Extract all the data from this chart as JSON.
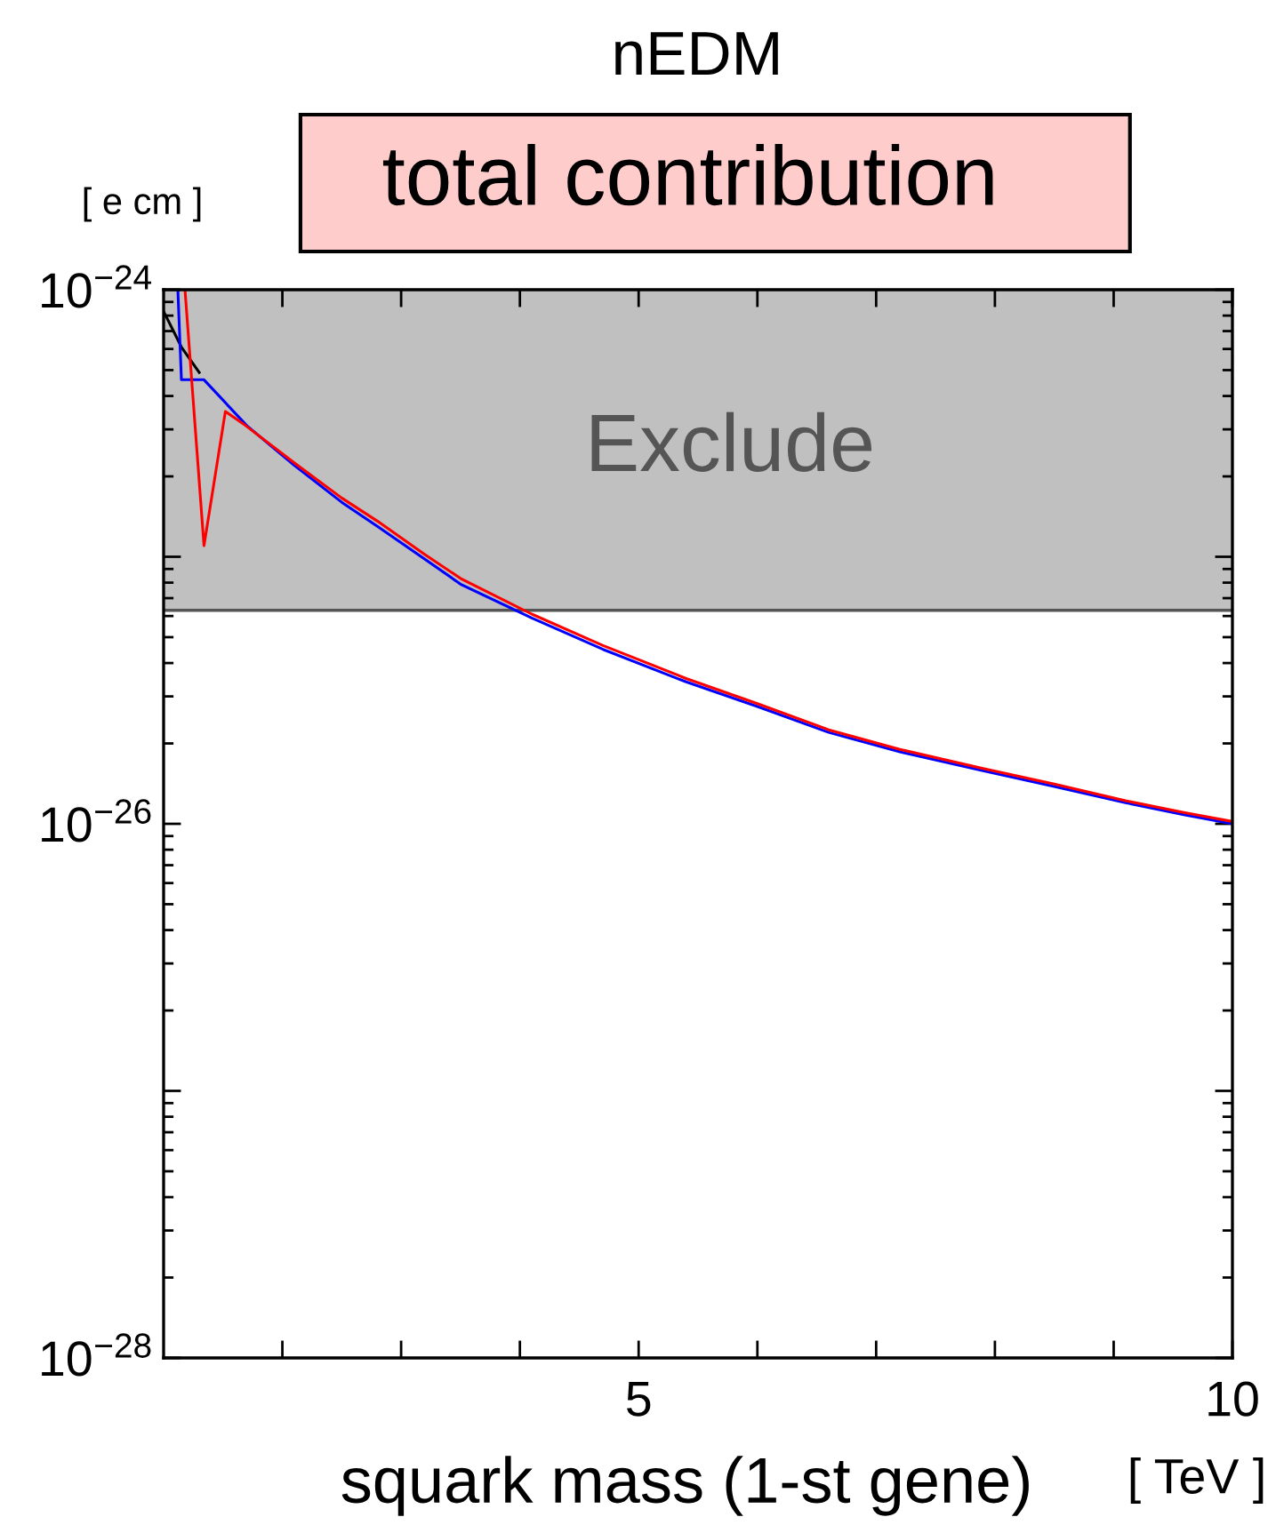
{
  "chart_data": {
    "type": "line",
    "title": "nEDM",
    "subtitle": "total contribution",
    "xlabel": "squark mass (1-st gene)",
    "ylabel": "[ e cm ]",
    "annotations": [
      "[ TeV ]"
    ],
    "log": "y",
    "xlim": [
      1,
      10
    ],
    "xticks": [
      {
        "value": 2,
        "label": null
      },
      {
        "value": 3,
        "label": null
      },
      {
        "value": 4,
        "label": null
      },
      5,
      {
        "value": 6,
        "label": null
      },
      {
        "value": 7,
        "label": null
      },
      {
        "value": 8,
        "label": null
      },
      {
        "value": 9,
        "label": null
      },
      10
    ],
    "ylim": [
      1e-28,
      1e-24
    ],
    "yticks": [
      {
        "value": 1e-28,
        "label": "10$^{−28}$"
      },
      {
        "value": 1e-27,
        "label": null
      },
      {
        "value": 1e-26,
        "label": "10$^{−26}$"
      },
      {
        "value": 1e-25,
        "label": null
      },
      {
        "value": 1e-24,
        "label": "10$^{−24}$"
      }
    ],
    "bands": [
      {
        "axis": "y",
        "from": 6.3e-26,
        "to": 1e-24,
        "label": "Exclude",
        "color": "#c0c0c0"
      }
    ],
    "ref_lines": [
      {
        "axis": "y",
        "value": 6.3e-26,
        "color": "#555555"
      }
    ],
    "series": [
      {
        "color": "#000000",
        "x": [
          1,
          1.15,
          1.3
        ],
        "values": [
          8.3e-25,
          6.1e-25,
          4.9e-25
        ]
      },
      {
        "color": "#0000ff",
        "x": [
          1.12,
          1.15,
          1.34,
          1.7,
          2.1,
          2.5,
          2.8,
          3.2,
          3.5,
          4.1,
          4.7,
          5.4,
          6.0,
          6.6,
          7.2,
          7.9,
          8.5,
          9.1,
          9.6,
          10
        ],
        "values": [
          1e-24,
          4.6e-25,
          4.6e-25,
          3.1e-25,
          2.2e-25,
          1.6e-25,
          1.3e-25,
          9.8e-26,
          7.9e-26,
          5.9e-26,
          4.5e-26,
          3.4e-26,
          2.75e-26,
          2.2e-26,
          1.86e-26,
          1.58e-26,
          1.38e-26,
          1.2e-26,
          1.08e-26,
          1e-26
        ]
      },
      {
        "color": "#ff0000",
        "x": [
          1.18,
          1.34,
          1.52,
          1.69,
          2.1,
          2.5,
          2.8,
          3.2,
          3.5,
          4.1,
          4.7,
          5.4,
          6.0,
          6.6,
          7.2,
          7.9,
          8.5,
          9.1,
          9.6,
          10
        ],
        "values": [
          1e-24,
          1.1e-25,
          3.5e-25,
          3.1e-25,
          2.25e-25,
          1.66e-25,
          1.36e-25,
          1.02e-25,
          8.3e-26,
          6.1e-26,
          4.65e-26,
          3.5e-26,
          2.82e-26,
          2.25e-26,
          1.9e-26,
          1.61e-26,
          1.41e-26,
          1.22e-26,
          1.1e-26,
          1.02e-26
        ]
      }
    ]
  }
}
